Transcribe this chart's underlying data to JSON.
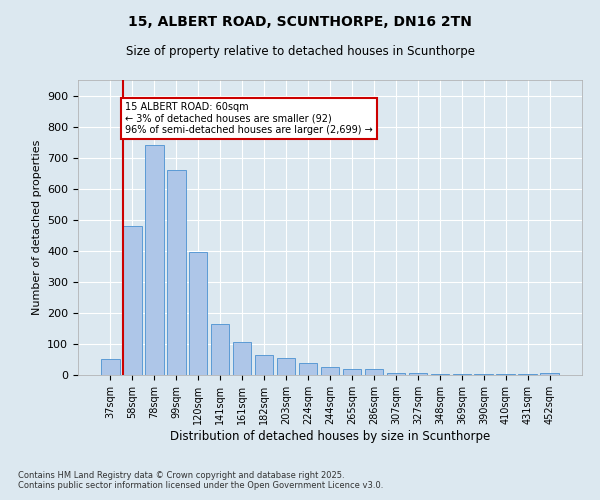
{
  "title_line1": "15, ALBERT ROAD, SCUNTHORPE, DN16 2TN",
  "title_line2": "Size of property relative to detached houses in Scunthorpe",
  "xlabel": "Distribution of detached houses by size in Scunthorpe",
  "ylabel": "Number of detached properties",
  "categories": [
    "37sqm",
    "58sqm",
    "78sqm",
    "99sqm",
    "120sqm",
    "141sqm",
    "161sqm",
    "182sqm",
    "203sqm",
    "224sqm",
    "244sqm",
    "265sqm",
    "286sqm",
    "307sqm",
    "327sqm",
    "348sqm",
    "369sqm",
    "390sqm",
    "410sqm",
    "431sqm",
    "452sqm"
  ],
  "values": [
    50,
    480,
    740,
    660,
    395,
    165,
    105,
    65,
    55,
    40,
    25,
    20,
    18,
    8,
    5,
    4,
    3,
    3,
    2,
    2,
    5
  ],
  "bar_color": "#aec6e8",
  "bar_edge_color": "#5b9bd5",
  "vline_color": "#cc0000",
  "annotation_text": "15 ALBERT ROAD: 60sqm\n← 3% of detached houses are smaller (92)\n96% of semi-detached houses are larger (2,699) →",
  "annotation_box_color": "#ffffff",
  "annotation_edge_color": "#cc0000",
  "background_color": "#dce8f0",
  "plot_bg_color": "#dce8f0",
  "ylim": [
    0,
    950
  ],
  "yticks": [
    0,
    100,
    200,
    300,
    400,
    500,
    600,
    700,
    800,
    900
  ],
  "footer_line1": "Contains HM Land Registry data © Crown copyright and database right 2025.",
  "footer_line2": "Contains public sector information licensed under the Open Government Licence v3.0."
}
